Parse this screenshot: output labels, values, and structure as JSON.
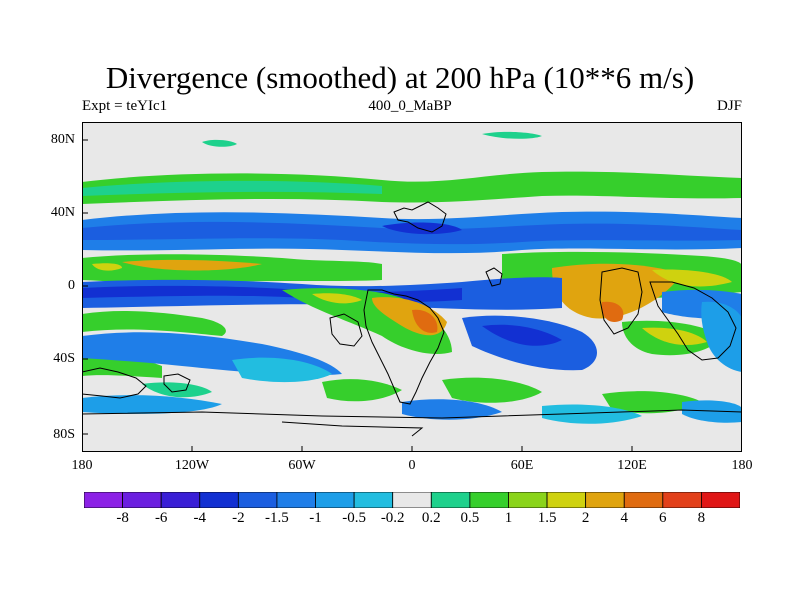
{
  "map": {
    "title": "Divergence (smoothed) at 200 hPa (10**6 m/s)",
    "left_label": "Expt = teYIc1",
    "center_label": "400_0_MaBP",
    "right_label": "DJF",
    "y_ticks": [
      "80N",
      "40N",
      "0",
      "40S",
      "80S"
    ],
    "x_ticks": [
      "180",
      "120W",
      "60W",
      "0",
      "60E",
      "120E",
      "180"
    ]
  },
  "colorbar": {
    "labels": [
      "-8",
      "-6",
      "-4",
      "-2",
      "-1.5",
      "-1",
      "-0.5",
      "-0.2",
      "0.2",
      "0.5",
      "1",
      "1.5",
      "2",
      "4",
      "6",
      "8"
    ],
    "colors": [
      "#8c21e6",
      "#6b1fe0",
      "#3a1fd6",
      "#1230d2",
      "#1b5ee0",
      "#1f7ee8",
      "#1d9ee8",
      "#22bde0",
      "#e8e8e8",
      "#1ed18c",
      "#36cf2c",
      "#8ad41a",
      "#cfd20f",
      "#e0a40f",
      "#e06b10",
      "#e2401a",
      "#e01616"
    ]
  }
}
